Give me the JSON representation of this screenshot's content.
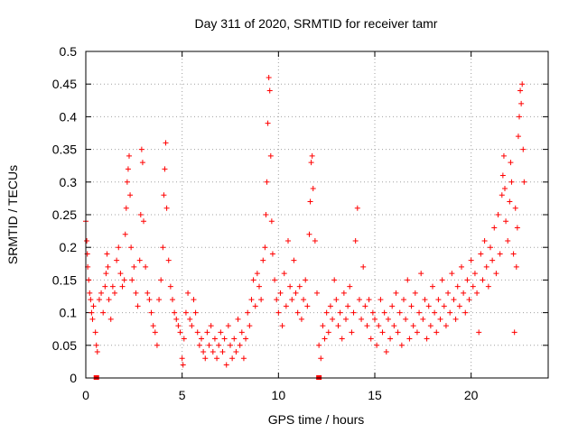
{
  "chart_data": {
    "type": "scatter",
    "title": "Day 311 of 2020, SRMTID for receiver tamr",
    "xlabel": "GPS time / hours",
    "ylabel": "SRMTID / TECUs",
    "xlim": [
      0,
      24
    ],
    "ylim": [
      0,
      0.5
    ],
    "x_ticks": [
      0,
      5,
      10,
      15,
      20
    ],
    "x_tick_labels": [
      "0",
      "5",
      "10",
      "15",
      "20"
    ],
    "y_ticks": [
      0,
      0.05,
      0.1,
      0.15,
      0.2,
      0.25,
      0.3,
      0.35,
      0.4,
      0.45,
      0.5
    ],
    "y_tick_labels": [
      "0",
      "0.05",
      "0.1",
      "0.15",
      "0.2",
      "0.25",
      "0.3",
      "0.35",
      "0.4",
      "0.45",
      "0.5"
    ],
    "grid": true,
    "marker": "plus",
    "color": "#ff0000",
    "series": [
      {
        "name": "SRMTID",
        "points": [
          [
            0.0,
            0.24
          ],
          [
            0.05,
            0.21
          ],
          [
            0.08,
            0.19
          ],
          [
            0.1,
            0.17
          ],
          [
            0.15,
            0.15
          ],
          [
            0.2,
            0.13
          ],
          [
            0.25,
            0.12
          ],
          [
            0.3,
            0.1
          ],
          [
            0.35,
            0.09
          ],
          [
            0.4,
            0.11
          ],
          [
            0.5,
            0.07
          ],
          [
            0.55,
            0.05
          ],
          [
            0.6,
            0.04
          ],
          [
            0.7,
            0.12
          ],
          [
            0.8,
            0.13
          ],
          [
            0.9,
            0.1
          ],
          [
            1.0,
            0.14
          ],
          [
            1.05,
            0.16
          ],
          [
            1.1,
            0.19
          ],
          [
            1.15,
            0.17
          ],
          [
            1.2,
            0.12
          ],
          [
            1.3,
            0.09
          ],
          [
            1.4,
            0.14
          ],
          [
            1.5,
            0.13
          ],
          [
            1.6,
            0.18
          ],
          [
            1.7,
            0.2
          ],
          [
            1.8,
            0.16
          ],
          [
            1.9,
            0.14
          ],
          [
            2.0,
            0.15
          ],
          [
            2.05,
            0.22
          ],
          [
            2.1,
            0.26
          ],
          [
            2.15,
            0.3
          ],
          [
            2.2,
            0.32
          ],
          [
            2.25,
            0.34
          ],
          [
            2.3,
            0.28
          ],
          [
            2.35,
            0.2
          ],
          [
            2.4,
            0.15
          ],
          [
            2.5,
            0.17
          ],
          [
            2.6,
            0.13
          ],
          [
            2.7,
            0.11
          ],
          [
            2.8,
            0.18
          ],
          [
            2.85,
            0.25
          ],
          [
            2.9,
            0.35
          ],
          [
            2.95,
            0.33
          ],
          [
            3.0,
            0.24
          ],
          [
            3.1,
            0.17
          ],
          [
            3.2,
            0.13
          ],
          [
            3.3,
            0.12
          ],
          [
            3.4,
            0.1
          ],
          [
            3.5,
            0.08
          ],
          [
            3.6,
            0.07
          ],
          [
            3.7,
            0.05
          ],
          [
            3.8,
            0.12
          ],
          [
            3.9,
            0.15
          ],
          [
            4.0,
            0.2
          ],
          [
            4.05,
            0.28
          ],
          [
            4.1,
            0.32
          ],
          [
            4.15,
            0.36
          ],
          [
            4.2,
            0.26
          ],
          [
            4.3,
            0.18
          ],
          [
            4.4,
            0.14
          ],
          [
            4.5,
            0.12
          ],
          [
            4.6,
            0.1
          ],
          [
            4.7,
            0.09
          ],
          [
            4.8,
            0.08
          ],
          [
            4.9,
            0.07
          ],
          [
            5.0,
            0.03
          ],
          [
            5.05,
            0.02
          ],
          [
            5.1,
            0.06
          ],
          [
            5.2,
            0.1
          ],
          [
            5.3,
            0.13
          ],
          [
            5.4,
            0.09
          ],
          [
            5.5,
            0.08
          ],
          [
            5.6,
            0.12
          ],
          [
            5.7,
            0.1
          ],
          [
            5.8,
            0.07
          ],
          [
            5.9,
            0.05
          ],
          [
            6.0,
            0.06
          ],
          [
            6.1,
            0.04
          ],
          [
            6.2,
            0.03
          ],
          [
            6.3,
            0.07
          ],
          [
            6.4,
            0.05
          ],
          [
            6.5,
            0.08
          ],
          [
            6.6,
            0.04
          ],
          [
            6.7,
            0.06
          ],
          [
            6.8,
            0.03
          ],
          [
            6.9,
            0.05
          ],
          [
            7.0,
            0.07
          ],
          [
            7.1,
            0.04
          ],
          [
            7.2,
            0.06
          ],
          [
            7.3,
            0.02
          ],
          [
            7.4,
            0.08
          ],
          [
            7.5,
            0.05
          ],
          [
            7.6,
            0.03
          ],
          [
            7.7,
            0.06
          ],
          [
            7.8,
            0.04
          ],
          [
            7.9,
            0.09
          ],
          [
            8.0,
            0.05
          ],
          [
            8.1,
            0.07
          ],
          [
            8.2,
            0.03
          ],
          [
            8.3,
            0.06
          ],
          [
            8.4,
            0.1
          ],
          [
            8.5,
            0.08
          ],
          [
            8.6,
            0.12
          ],
          [
            8.7,
            0.15
          ],
          [
            8.8,
            0.11
          ],
          [
            8.9,
            0.16
          ],
          [
            9.0,
            0.14
          ],
          [
            9.1,
            0.12
          ],
          [
            9.2,
            0.18
          ],
          [
            9.3,
            0.2
          ],
          [
            9.35,
            0.25
          ],
          [
            9.4,
            0.3
          ],
          [
            9.45,
            0.39
          ],
          [
            9.5,
            0.46
          ],
          [
            9.55,
            0.44
          ],
          [
            9.6,
            0.34
          ],
          [
            9.65,
            0.24
          ],
          [
            9.7,
            0.19
          ],
          [
            9.8,
            0.15
          ],
          [
            9.9,
            0.12
          ],
          [
            10.0,
            0.1
          ],
          [
            10.1,
            0.13
          ],
          [
            10.2,
            0.08
          ],
          [
            10.3,
            0.16
          ],
          [
            10.4,
            0.11
          ],
          [
            10.5,
            0.21
          ],
          [
            10.6,
            0.14
          ],
          [
            10.7,
            0.12
          ],
          [
            10.8,
            0.18
          ],
          [
            10.9,
            0.13
          ],
          [
            11.0,
            0.1
          ],
          [
            11.1,
            0.14
          ],
          [
            11.2,
            0.09
          ],
          [
            11.3,
            0.12
          ],
          [
            11.4,
            0.15
          ],
          [
            11.5,
            0.11
          ],
          [
            11.6,
            0.22
          ],
          [
            11.65,
            0.27
          ],
          [
            11.7,
            0.33
          ],
          [
            11.75,
            0.34
          ],
          [
            11.8,
            0.29
          ],
          [
            11.9,
            0.21
          ],
          [
            12.0,
            0.13
          ],
          [
            12.1,
            0.05
          ],
          [
            12.2,
            0.03
          ],
          [
            12.3,
            0.08
          ],
          [
            12.4,
            0.06
          ],
          [
            12.5,
            0.1
          ],
          [
            12.6,
            0.07
          ],
          [
            12.7,
            0.11
          ],
          [
            12.8,
            0.09
          ],
          [
            12.9,
            0.15
          ],
          [
            13.0,
            0.12
          ],
          [
            13.1,
            0.08
          ],
          [
            13.2,
            0.1
          ],
          [
            13.3,
            0.06
          ],
          [
            13.4,
            0.13
          ],
          [
            13.5,
            0.09
          ],
          [
            13.6,
            0.11
          ],
          [
            13.7,
            0.14
          ],
          [
            13.8,
            0.07
          ],
          [
            13.9,
            0.1
          ],
          [
            14.0,
            0.21
          ],
          [
            14.1,
            0.26
          ],
          [
            14.2,
            0.12
          ],
          [
            14.3,
            0.09
          ],
          [
            14.4,
            0.17
          ],
          [
            14.5,
            0.11
          ],
          [
            14.6,
            0.08
          ],
          [
            14.7,
            0.12
          ],
          [
            14.8,
            0.06
          ],
          [
            14.9,
            0.1
          ],
          [
            15.0,
            0.09
          ],
          [
            15.1,
            0.05
          ],
          [
            15.2,
            0.08
          ],
          [
            15.3,
            0.12
          ],
          [
            15.4,
            0.07
          ],
          [
            15.5,
            0.1
          ],
          [
            15.6,
            0.04
          ],
          [
            15.7,
            0.09
          ],
          [
            15.8,
            0.06
          ],
          [
            15.9,
            0.11
          ],
          [
            16.0,
            0.08
          ],
          [
            16.1,
            0.13
          ],
          [
            16.2,
            0.07
          ],
          [
            16.3,
            0.1
          ],
          [
            16.4,
            0.05
          ],
          [
            16.5,
            0.12
          ],
          [
            16.6,
            0.09
          ],
          [
            16.7,
            0.15
          ],
          [
            16.8,
            0.06
          ],
          [
            16.9,
            0.11
          ],
          [
            17.0,
            0.08
          ],
          [
            17.1,
            0.13
          ],
          [
            17.2,
            0.07
          ],
          [
            17.3,
            0.1
          ],
          [
            17.4,
            0.16
          ],
          [
            17.5,
            0.09
          ],
          [
            17.6,
            0.12
          ],
          [
            17.7,
            0.06
          ],
          [
            17.8,
            0.11
          ],
          [
            17.9,
            0.08
          ],
          [
            18.0,
            0.14
          ],
          [
            18.1,
            0.1
          ],
          [
            18.2,
            0.07
          ],
          [
            18.3,
            0.12
          ],
          [
            18.4,
            0.09
          ],
          [
            18.5,
            0.15
          ],
          [
            18.6,
            0.11
          ],
          [
            18.7,
            0.08
          ],
          [
            18.8,
            0.13
          ],
          [
            18.9,
            0.1
          ],
          [
            19.0,
            0.16
          ],
          [
            19.1,
            0.12
          ],
          [
            19.2,
            0.09
          ],
          [
            19.3,
            0.14
          ],
          [
            19.4,
            0.11
          ],
          [
            19.5,
            0.17
          ],
          [
            19.6,
            0.13
          ],
          [
            19.7,
            0.1
          ],
          [
            19.8,
            0.15
          ],
          [
            19.9,
            0.12
          ],
          [
            20.0,
            0.18
          ],
          [
            20.1,
            0.14
          ],
          [
            20.2,
            0.16
          ],
          [
            20.3,
            0.13
          ],
          [
            20.4,
            0.07
          ],
          [
            20.5,
            0.19
          ],
          [
            20.6,
            0.15
          ],
          [
            20.7,
            0.21
          ],
          [
            20.8,
            0.17
          ],
          [
            20.9,
            0.14
          ],
          [
            21.0,
            0.2
          ],
          [
            21.1,
            0.18
          ],
          [
            21.2,
            0.23
          ],
          [
            21.3,
            0.16
          ],
          [
            21.4,
            0.25
          ],
          [
            21.5,
            0.19
          ],
          [
            21.6,
            0.28
          ],
          [
            21.65,
            0.31
          ],
          [
            21.7,
            0.34
          ],
          [
            21.75,
            0.29
          ],
          [
            21.8,
            0.24
          ],
          [
            21.9,
            0.21
          ],
          [
            22.0,
            0.27
          ],
          [
            22.05,
            0.33
          ],
          [
            22.1,
            0.3
          ],
          [
            22.2,
            0.19
          ],
          [
            22.25,
            0.07
          ],
          [
            22.3,
            0.26
          ],
          [
            22.35,
            0.17
          ],
          [
            22.4,
            0.23
          ],
          [
            22.45,
            0.37
          ],
          [
            22.5,
            0.4
          ],
          [
            22.55,
            0.44
          ],
          [
            22.6,
            0.42
          ],
          [
            22.65,
            0.45
          ],
          [
            22.7,
            0.35
          ],
          [
            22.75,
            0.3
          ]
        ]
      }
    ],
    "x_axis_markers": [
      0.55,
      12.1
    ]
  }
}
